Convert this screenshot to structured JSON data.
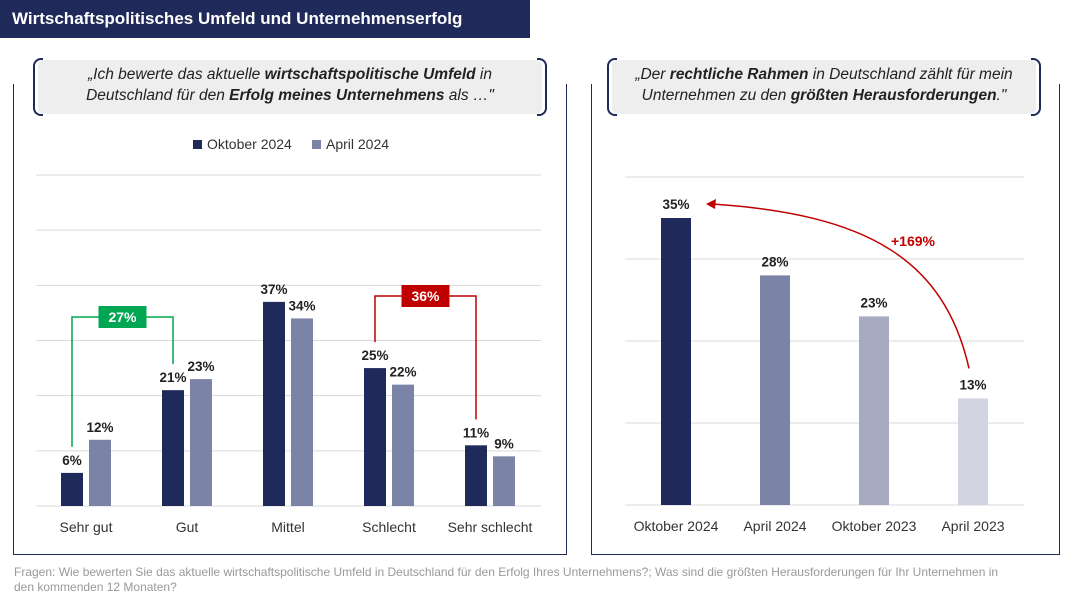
{
  "title": "Wirtschaftspolitisches Umfeld und Unternehmenserfolg",
  "quote_left": {
    "line1_pre": "„Ich bewerte das aktuelle ",
    "line1_bold": "wirtschaftspolitische Umfeld",
    "line1_post": " in",
    "line2_pre": "Deutschland für den ",
    "line2_bold": "Erfolg meines Unternehmens",
    "line2_post": " als …\""
  },
  "quote_right": {
    "line1_pre": "„Der ",
    "line1_bold": "rechtliche Rahmen",
    "line1_post": " in Deutschland zählt für mein",
    "line2_pre": "Unternehmen zu den ",
    "line2_bold": "größten Herausforderungen",
    "line2_post": ".\""
  },
  "footer": "Fragen: Wie bewerten Sie das aktuelle wirtschaftspolitische Umfeld in Deutschland für den Erfolg Ihres Unternehmens?; Was sind die größten Herausforderungen für Ihr Unternehmen in den kommenden 12 Monaten?",
  "colors": {
    "navy": "#1f2a5a",
    "gray_blue": "#7b83a6",
    "green": "#00a651",
    "red": "#c00000"
  },
  "chart_data": [
    {
      "type": "bar",
      "categories": [
        "Sehr gut",
        "Gut",
        "Mittel",
        "Schlecht",
        "Sehr schlecht"
      ],
      "series": [
        {
          "name": "Oktober 2024",
          "values": [
            6,
            21,
            37,
            25,
            11
          ],
          "labels": [
            "6%",
            "21%",
            "37%",
            "25%",
            "11%"
          ],
          "color": "#1f2a5a"
        },
        {
          "name": "April 2024",
          "values": [
            12,
            23,
            34,
            22,
            9
          ],
          "labels": [
            "12%",
            "23%",
            "34%",
            "22%",
            "9%"
          ],
          "color": "#7b83a6"
        }
      ],
      "ylim": [
        0,
        60
      ],
      "legend": "top",
      "grid": true,
      "annotations": [
        {
          "text": "27%",
          "spans": [
            "Sehr gut",
            "Gut"
          ],
          "series": "Oktober 2024",
          "color": "#00a651"
        },
        {
          "text": "36%",
          "spans": [
            "Schlecht",
            "Sehr schlecht"
          ],
          "series": "Oktober 2024",
          "color": "#c00000"
        }
      ]
    },
    {
      "type": "bar",
      "categories": [
        "Oktober 2024",
        "April 2024",
        "Oktober 2023",
        "April 2023"
      ],
      "values": [
        35,
        28,
        23,
        13
      ],
      "labels": [
        "35%",
        "28%",
        "23%",
        "13%"
      ],
      "colors": [
        "#1f2a5a",
        "#7b83a6",
        "#a6abc2",
        "#d2d4e1"
      ],
      "ylim": [
        0,
        40
      ],
      "grid": true,
      "annotations": [
        {
          "text": "+169%",
          "from": "April 2023",
          "to": "Oktober 2024",
          "color": "#c00000"
        }
      ]
    }
  ]
}
